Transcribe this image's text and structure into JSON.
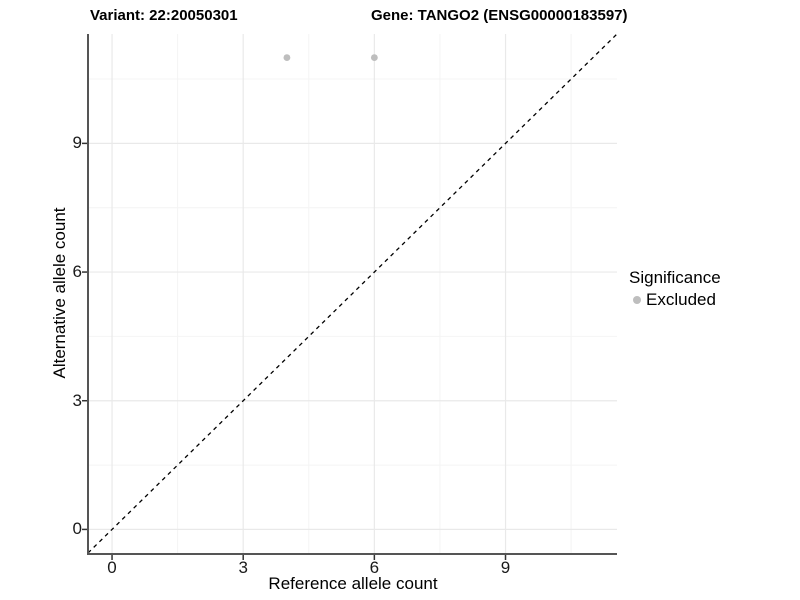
{
  "chart_data": {
    "type": "scatter",
    "title_left": "Variant: 22:20050301",
    "title_right": "Gene: TANGO2 (ENSG00000183597)",
    "xlabel": "Reference allele count",
    "ylabel": "Alternative allele count",
    "xlim": [
      -0.55,
      11.55
    ],
    "ylim": [
      -0.55,
      11.55
    ],
    "x_major_ticks": [
      0,
      3,
      6,
      9
    ],
    "y_major_ticks": [
      0,
      3,
      6,
      9
    ],
    "x_minor_ticks": [
      1.5,
      4.5,
      7.5,
      10.5
    ],
    "y_minor_ticks": [
      1.5,
      4.5,
      7.5,
      10.5
    ],
    "grid": "major+minor",
    "identity_line": {
      "style": "dashed",
      "slope": 1,
      "intercept": 0,
      "color": "#000000"
    },
    "series": [
      {
        "name": "Excluded",
        "marker": "circle",
        "color": "#bebebe",
        "points": [
          [
            4,
            11
          ],
          [
            6,
            11
          ]
        ]
      }
    ],
    "legend": {
      "title": "Significance",
      "position": "right",
      "items": [
        {
          "label": "Excluded",
          "color": "#bebebe"
        }
      ]
    }
  },
  "colors": {
    "background": "#ffffff",
    "grid_major": "#e9e9e9",
    "grid_minor": "#f4f4f4",
    "axis_line": "#555555",
    "tick_mark": "#333333",
    "dashed_line": "#000000",
    "text": "#000000"
  }
}
